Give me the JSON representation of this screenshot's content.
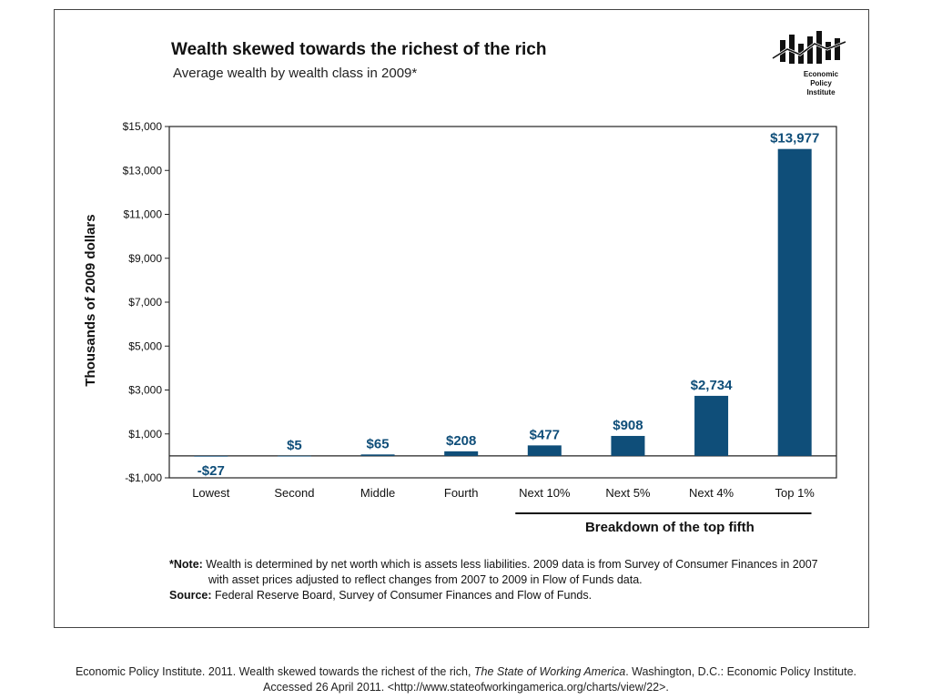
{
  "chart_data": {
    "type": "bar",
    "title": "Wealth skewed towards the richest of the rich",
    "subtitle": "Average wealth by wealth class in 2009*",
    "ylabel": "Thousands of 2009 dollars",
    "xlabel": "",
    "ylim": [
      -1000,
      15000
    ],
    "yticks": [
      -1000,
      1000,
      3000,
      5000,
      7000,
      9000,
      11000,
      13000,
      15000
    ],
    "ytick_labels": [
      "-$1,000",
      "$1,000",
      "$3,000",
      "$5,000",
      "$7,000",
      "$9,000",
      "$11,000",
      "$13,000",
      "$15,000"
    ],
    "categories": [
      "Lowest",
      "Second",
      "Middle",
      "Fourth",
      "Next 10%",
      "Next 5%",
      "Next 4%",
      "Top 1%"
    ],
    "values": [
      -27,
      5,
      65,
      208,
      477,
      908,
      2734,
      13977
    ],
    "value_labels": [
      "-$27",
      "$5",
      "$65",
      "$208",
      "$477",
      "$908",
      "$2,734",
      "$13,977"
    ],
    "bracket_label": "Breakdown of the top fifth",
    "bracket_categories": [
      "Next 10%",
      "Next 5%",
      "Next 4%",
      "Top 1%"
    ],
    "bar_color": "#0f4e79",
    "grid": false
  },
  "logo": {
    "line1": "Economic",
    "line2": "Policy",
    "line3": "Institute"
  },
  "note": {
    "label": "*Note:",
    "text1": " Wealth is determined by net worth which is assets less liabilities. 2009 data is from Survey of Consumer Finances in 2007",
    "text2": "with asset prices adjusted to reflect changes from 2007 to 2009 in Flow of Funds data."
  },
  "source": {
    "label": "Source:",
    "text": " Federal Reserve Board, Survey of Consumer Finances and Flow of Funds."
  },
  "citation": {
    "part1": "Economic Policy Institute. 2011. Wealth skewed towards the richest of the rich, ",
    "italic": "The State of Working America",
    "part2": ". Washington, D.C.: Economic Policy Institute.",
    "line2": "Accessed 26 April 2011.  <http://www.stateofworkingamerica.org/charts/view/22>."
  }
}
